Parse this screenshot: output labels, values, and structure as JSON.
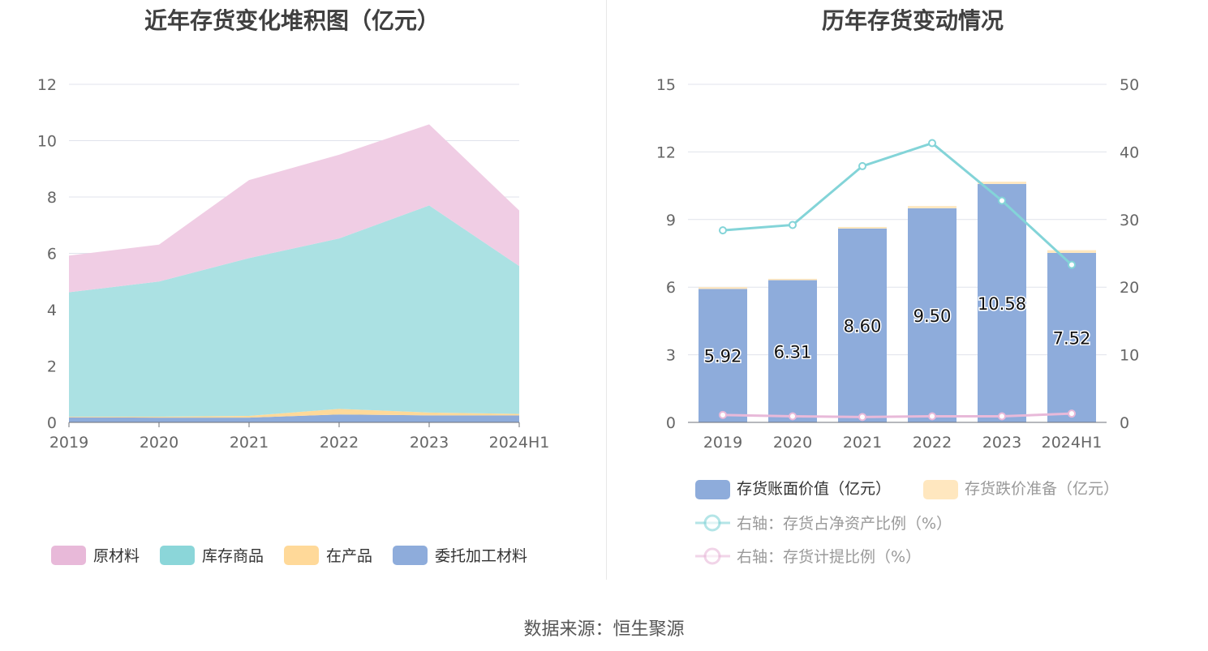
{
  "source_label": "数据来源：恒生聚源",
  "chart_data": [
    {
      "type": "area",
      "title": "近年存货变化堆积图（亿元）",
      "categories": [
        "2019",
        "2020",
        "2021",
        "2022",
        "2023",
        "2024H1"
      ],
      "ylim": [
        0,
        12
      ],
      "yticks": [
        0,
        2,
        4,
        6,
        8,
        10,
        12
      ],
      "stacked": true,
      "grid": true,
      "legend_position": "bottom",
      "series": [
        {
          "name": "委托加工材料",
          "color": "#8eacdb",
          "values": [
            0.18,
            0.17,
            0.17,
            0.28,
            0.25,
            0.25
          ]
        },
        {
          "name": "在产品",
          "color": "#ffd999",
          "values": [
            0.02,
            0.03,
            0.06,
            0.2,
            0.1,
            0.05
          ]
        },
        {
          "name": "库存商品",
          "color": "#abe1e3",
          "values": [
            4.42,
            4.8,
            5.6,
            6.05,
            7.35,
            5.25
          ]
        },
        {
          "name": "原材料",
          "color": "#f0cde4",
          "values": [
            1.3,
            1.31,
            2.77,
            2.97,
            2.88,
            1.97
          ]
        }
      ],
      "legend": [
        {
          "name": "原材料",
          "color": "#e8b9d9"
        },
        {
          "name": "库存商品",
          "color": "#8bd6d9"
        },
        {
          "name": "在产品",
          "color": "#ffd999"
        },
        {
          "name": "委托加工材料",
          "color": "#8eacdb"
        }
      ]
    },
    {
      "type": "bar",
      "title": "历年存货变动情况",
      "categories": [
        "2019",
        "2020",
        "2021",
        "2022",
        "2023",
        "2024H1"
      ],
      "ylim": [
        0,
        15
      ],
      "yticks": [
        0,
        3,
        6,
        9,
        12,
        15
      ],
      "y2lim": [
        0,
        50
      ],
      "y2ticks": [
        0,
        10,
        20,
        30,
        40,
        50
      ],
      "grid": true,
      "legend_position": "bottom",
      "series": [
        {
          "name": "存货账面价值（亿元）",
          "type": "bar",
          "axis": "left",
          "color": "#8eacdb",
          "values": [
            5.92,
            6.31,
            8.6,
            9.5,
            10.58,
            7.52
          ],
          "labels": [
            "5.92",
            "6.31",
            "8.60",
            "9.50",
            "10.58",
            "7.52"
          ]
        },
        {
          "name": "存货跌价准备（亿元）",
          "type": "bar",
          "axis": "left",
          "color": "#ffe7bf",
          "values": [
            0.08,
            0.06,
            0.07,
            0.1,
            0.1,
            0.12
          ]
        },
        {
          "name": "右轴：存货占净资产比例（%）",
          "type": "line",
          "axis": "right",
          "color": "#83d4d8",
          "values": [
            28.4,
            29.2,
            37.9,
            41.3,
            32.8,
            23.3
          ]
        },
        {
          "name": "右轴：存货计提比例（%）",
          "type": "line",
          "axis": "right",
          "color": "#e8b9d9",
          "values": [
            1.1,
            0.9,
            0.8,
            0.9,
            0.9,
            1.3
          ]
        }
      ]
    }
  ]
}
